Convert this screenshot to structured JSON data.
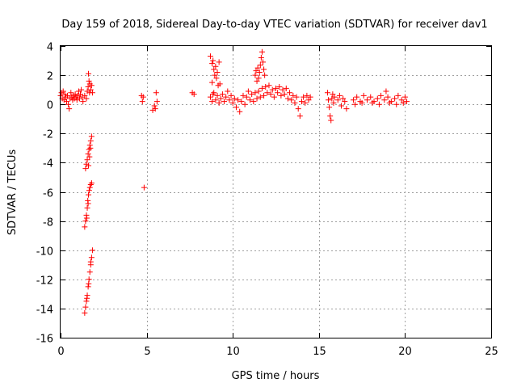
{
  "chart_data": {
    "type": "scatter",
    "title": "Day 159 of 2018, Sidereal Day-to-day VTEC variation (SDTVAR) for receiver dav1",
    "xlabel": "GPS time / hours",
    "ylabel": "SDTVAR / TECUs",
    "xlim": [
      0,
      25
    ],
    "ylim": [
      -16,
      4
    ],
    "xticks": [
      "0",
      "5",
      "10",
      "15",
      "20",
      "25"
    ],
    "yticks": [
      "4",
      "2",
      "0",
      "-2",
      "-4",
      "-6",
      "-8",
      "-10",
      "-12",
      "-14",
      "-16"
    ],
    "grid": true,
    "marker": "plus",
    "color": "#ff0000",
    "series": [
      {
        "name": "SDTVAR",
        "points": [
          [
            0.0,
            0.6
          ],
          [
            0.05,
            0.8
          ],
          [
            0.1,
            0.4
          ],
          [
            0.15,
            0.9
          ],
          [
            0.2,
            0.3
          ],
          [
            0.25,
            0.7
          ],
          [
            0.3,
            0.5
          ],
          [
            0.35,
            0.2
          ],
          [
            0.4,
            0.6
          ],
          [
            0.45,
            0.0
          ],
          [
            0.5,
            -0.3
          ],
          [
            0.55,
            0.4
          ],
          [
            0.6,
            0.8
          ],
          [
            0.65,
            0.5
          ],
          [
            0.7,
            0.3
          ],
          [
            0.75,
            0.6
          ],
          [
            0.8,
            0.4
          ],
          [
            0.85,
            0.7
          ],
          [
            0.9,
            0.5
          ],
          [
            0.95,
            0.3
          ],
          [
            1.0,
            0.6
          ],
          [
            1.05,
            0.9
          ],
          [
            1.1,
            0.4
          ],
          [
            1.15,
            0.7
          ],
          [
            1.2,
            1.0
          ],
          [
            1.25,
            0.5
          ],
          [
            1.3,
            0.2
          ],
          [
            1.4,
            0.6
          ],
          [
            1.5,
            0.4
          ],
          [
            1.55,
            0.9
          ],
          [
            1.6,
            1.2
          ],
          [
            1.62,
            2.1
          ],
          [
            1.65,
            1.6
          ],
          [
            1.68,
            0.8
          ],
          [
            1.7,
            1.4
          ],
          [
            1.75,
            1.0
          ],
          [
            1.8,
            1.3
          ],
          [
            1.85,
            0.8
          ],
          [
            1.45,
            -4.4
          ],
          [
            1.5,
            -4.1
          ],
          [
            1.55,
            -3.8
          ],
          [
            1.6,
            -3.4
          ],
          [
            1.65,
            -3.1
          ],
          [
            1.7,
            -2.8
          ],
          [
            1.75,
            -2.5
          ],
          [
            1.8,
            -2.2
          ],
          [
            1.62,
            -4.2
          ],
          [
            1.68,
            -3.6
          ],
          [
            1.73,
            -3.0
          ],
          [
            1.4,
            -8.4
          ],
          [
            1.45,
            -8.0
          ],
          [
            1.5,
            -7.6
          ],
          [
            1.55,
            -7.1
          ],
          [
            1.58,
            -6.6
          ],
          [
            1.62,
            -6.2
          ],
          [
            1.66,
            -5.9
          ],
          [
            1.7,
            -5.7
          ],
          [
            1.75,
            -5.5
          ],
          [
            1.8,
            -5.4
          ],
          [
            1.52,
            -7.8
          ],
          [
            1.6,
            -6.8
          ],
          [
            1.4,
            -14.3
          ],
          [
            1.45,
            -13.9
          ],
          [
            1.5,
            -13.5
          ],
          [
            1.55,
            -13.1
          ],
          [
            1.6,
            -12.5
          ],
          [
            1.65,
            -12.0
          ],
          [
            1.7,
            -11.5
          ],
          [
            1.75,
            -11.0
          ],
          [
            1.8,
            -10.5
          ],
          [
            1.85,
            -10.0
          ],
          [
            1.75,
            -10.8
          ],
          [
            1.63,
            -12.3
          ],
          [
            1.53,
            -13.3
          ],
          [
            4.7,
            0.6
          ],
          [
            4.75,
            0.2
          ],
          [
            4.8,
            0.5
          ],
          [
            4.85,
            -5.7
          ],
          [
            5.35,
            -0.4
          ],
          [
            5.45,
            -0.1
          ],
          [
            5.5,
            -0.3
          ],
          [
            5.55,
            0.8
          ],
          [
            5.6,
            0.2
          ],
          [
            7.65,
            0.8
          ],
          [
            7.75,
            0.7
          ],
          [
            8.7,
            3.3
          ],
          [
            8.8,
            2.8
          ],
          [
            8.85,
            3.0
          ],
          [
            8.9,
            2.4
          ],
          [
            8.95,
            2.0
          ],
          [
            9.0,
            2.6
          ],
          [
            9.05,
            1.8
          ],
          [
            9.1,
            2.2
          ],
          [
            9.15,
            1.3
          ],
          [
            9.2,
            2.9
          ],
          [
            9.25,
            1.4
          ],
          [
            8.8,
            1.5
          ],
          [
            8.85,
            0.7
          ],
          [
            8.7,
            0.5
          ],
          [
            8.8,
            0.2
          ],
          [
            8.9,
            0.8
          ],
          [
            9.0,
            0.3
          ],
          [
            9.1,
            0.6
          ],
          [
            9.2,
            0.1
          ],
          [
            9.3,
            0.4
          ],
          [
            9.4,
            0.7
          ],
          [
            9.5,
            0.2
          ],
          [
            9.6,
            0.5
          ],
          [
            9.7,
            0.9
          ],
          [
            9.8,
            0.3
          ],
          [
            9.9,
            0.6
          ],
          [
            10.0,
            0.1
          ],
          [
            10.1,
            0.4
          ],
          [
            10.2,
            -0.2
          ],
          [
            10.3,
            0.3
          ],
          [
            10.4,
            -0.5
          ],
          [
            10.5,
            0.2
          ],
          [
            10.6,
            0.6
          ],
          [
            10.7,
            0.0
          ],
          [
            10.8,
            0.5
          ],
          [
            10.9,
            0.9
          ],
          [
            11.0,
            0.3
          ],
          [
            11.1,
            0.7
          ],
          [
            11.2,
            0.2
          ],
          [
            11.3,
            0.8
          ],
          [
            11.3,
            2.0
          ],
          [
            11.35,
            2.3
          ],
          [
            11.4,
            1.6
          ],
          [
            11.45,
            2.5
          ],
          [
            11.5,
            1.8
          ],
          [
            11.55,
            2.2
          ],
          [
            11.6,
            2.7
          ],
          [
            11.65,
            3.2
          ],
          [
            11.7,
            3.6
          ],
          [
            11.75,
            2.9
          ],
          [
            11.8,
            2.4
          ],
          [
            11.85,
            2.0
          ],
          [
            11.4,
            0.4
          ],
          [
            11.5,
            0.9
          ],
          [
            11.6,
            0.5
          ],
          [
            11.7,
            1.1
          ],
          [
            11.8,
            0.6
          ],
          [
            11.9,
            1.2
          ],
          [
            12.0,
            0.8
          ],
          [
            12.1,
            1.3
          ],
          [
            12.2,
            0.7
          ],
          [
            12.3,
            1.0
          ],
          [
            12.4,
            0.5
          ],
          [
            12.5,
            1.1
          ],
          [
            12.6,
            0.8
          ],
          [
            12.7,
            1.2
          ],
          [
            12.8,
            0.6
          ],
          [
            12.9,
            1.0
          ],
          [
            13.0,
            0.7
          ],
          [
            13.1,
            1.1
          ],
          [
            13.2,
            0.4
          ],
          [
            13.3,
            0.8
          ],
          [
            13.4,
            0.3
          ],
          [
            13.5,
            0.6
          ],
          [
            13.6,
            0.1
          ],
          [
            13.7,
            0.5
          ],
          [
            13.8,
            -0.3
          ],
          [
            13.9,
            -0.8
          ],
          [
            14.0,
            0.2
          ],
          [
            14.1,
            0.5
          ],
          [
            14.2,
            0.1
          ],
          [
            14.3,
            0.6
          ],
          [
            14.4,
            0.3
          ],
          [
            14.5,
            0.5
          ],
          [
            15.5,
            0.8
          ],
          [
            15.55,
            0.3
          ],
          [
            15.6,
            -0.2
          ],
          [
            15.65,
            -0.8
          ],
          [
            15.7,
            -1.1
          ],
          [
            15.75,
            0.4
          ],
          [
            15.8,
            0.7
          ],
          [
            15.85,
            0.1
          ],
          [
            15.9,
            0.5
          ],
          [
            16.1,
            0.3
          ],
          [
            16.2,
            0.6
          ],
          [
            16.3,
            -0.1
          ],
          [
            16.4,
            0.4
          ],
          [
            16.5,
            0.2
          ],
          [
            16.6,
            -0.3
          ],
          [
            17.0,
            0.3
          ],
          [
            17.2,
            0.5
          ],
          [
            17.4,
            0.2
          ],
          [
            17.6,
            0.6
          ],
          [
            17.8,
            0.3
          ],
          [
            18.0,
            0.5
          ],
          [
            18.2,
            0.2
          ],
          [
            18.4,
            0.4
          ],
          [
            18.6,
            0.6
          ],
          [
            18.8,
            0.3
          ],
          [
            18.9,
            0.9
          ],
          [
            19.0,
            0.5
          ],
          [
            19.2,
            0.2
          ],
          [
            19.4,
            0.4
          ],
          [
            19.6,
            0.6
          ],
          [
            19.8,
            0.3
          ],
          [
            20.0,
            0.5
          ],
          [
            20.1,
            0.2
          ],
          [
            17.1,
            0.0
          ],
          [
            17.5,
            0.1
          ],
          [
            18.1,
            0.1
          ],
          [
            18.5,
            0.0
          ],
          [
            19.1,
            0.1
          ],
          [
            19.5,
            0.0
          ],
          [
            19.9,
            0.1
          ]
        ]
      }
    ]
  }
}
